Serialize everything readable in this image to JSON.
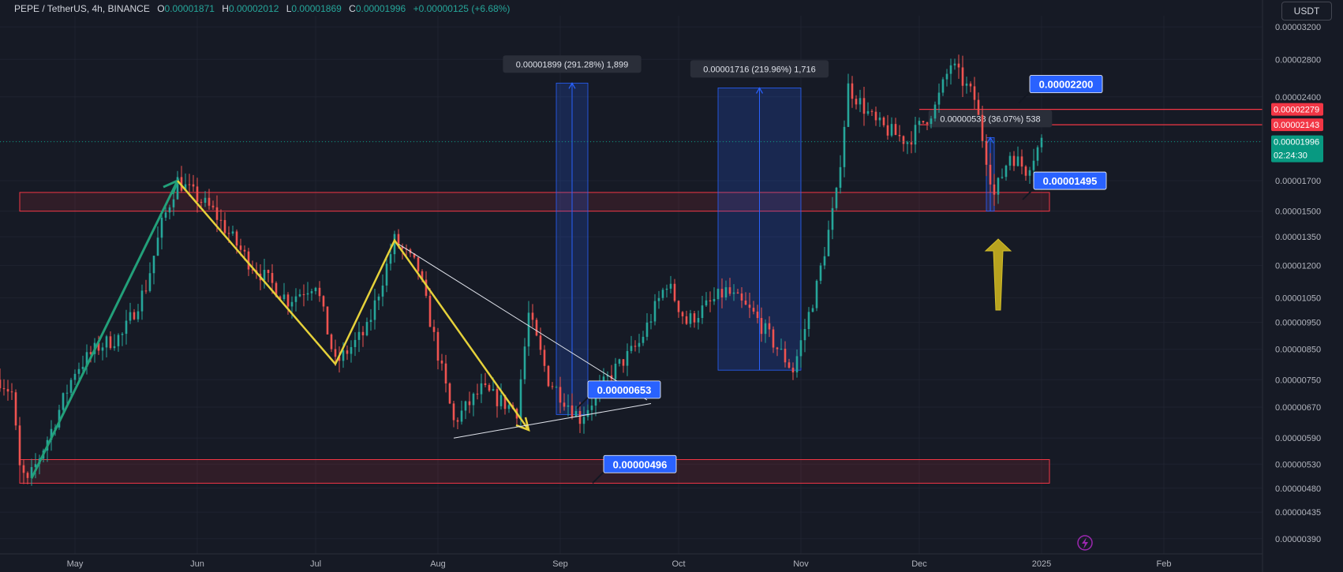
{
  "header": {
    "symbol": "PEPE / TetherUS, 4h, BINANCE",
    "o_label": "O",
    "o_value": "0.00001871",
    "h_label": "H",
    "h_value": "0.00002012",
    "l_label": "L",
    "l_value": "0.00001869",
    "c_label": "C",
    "c_value": "0.00001996",
    "change": "+0.00000125 (+6.68%)"
  },
  "currency_button": "USDT",
  "colors": {
    "background": "#161a25",
    "up": "#26a69a",
    "down": "#ef5350",
    "zone": "#f23645",
    "trend_green": "#22a07a",
    "trend_yellow": "#e5d13a",
    "label_blue": "#2962ff",
    "measure_blue": "#2962ff"
  },
  "chart_data": {
    "type": "candlestick",
    "y_scale": "log",
    "y_ticks": [
      "0.00003200",
      "0.00002800",
      "0.00002400",
      "0.00002000",
      "0.00001700",
      "0.00001500",
      "0.00001350",
      "0.00001200",
      "0.00001050",
      "0.00000950",
      "0.00000850",
      "0.00000750",
      "0.00000670",
      "0.00000590",
      "0.00000530",
      "0.00000480",
      "0.00000435",
      "0.00000390"
    ],
    "x_ticks": [
      "May",
      "Jun",
      "Jul",
      "Aug",
      "Sep",
      "Oct",
      "Nov",
      "Dec",
      "2025",
      "Feb"
    ],
    "x_range": [
      "2024-04-12",
      "2025-02-26"
    ],
    "price_path": [
      [
        "2024-04-12",
        7.5e-06
      ],
      [
        "2024-04-15",
        7.1e-06
      ],
      [
        "2024-04-17",
        5.2e-06
      ],
      [
        "2024-04-19",
        4.9e-06
      ],
      [
        "2024-04-25",
        6.1e-06
      ],
      [
        "2024-05-01",
        7.8e-06
      ],
      [
        "2024-05-07",
        8.6e-06
      ],
      [
        "2024-05-13",
        9e-06
      ],
      [
        "2024-05-19",
        1.1e-05
      ],
      [
        "2024-05-23",
        1.42e-05
      ],
      [
        "2024-05-27",
        1.7e-05
      ],
      [
        "2024-06-05",
        1.5e-05
      ],
      [
        "2024-06-14",
        1.22e-05
      ],
      [
        "2024-06-24",
        1.04e-05
      ],
      [
        "2024-07-01",
        1.12e-05
      ],
      [
        "2024-07-06",
        8e-06
      ],
      [
        "2024-07-14",
        9.2e-06
      ],
      [
        "2024-07-21",
        1.33e-05
      ],
      [
        "2024-07-27",
        1.18e-05
      ],
      [
        "2024-08-05",
        6.3e-06
      ],
      [
        "2024-08-12",
        7.2e-06
      ],
      [
        "2024-08-21",
        6.6e-06
      ],
      [
        "2024-08-24",
        9.8e-06
      ],
      [
        "2024-08-29",
        7.5e-06
      ],
      [
        "2024-09-06",
        6.4e-06
      ],
      [
        "2024-09-14",
        7.7e-06
      ],
      [
        "2024-09-21",
        8.7e-06
      ],
      [
        "2024-09-28",
        1.12e-05
      ],
      [
        "2024-10-03",
        9.5e-06
      ],
      [
        "2024-10-13",
        1.08e-05
      ],
      [
        "2024-10-20",
        9.8e-06
      ],
      [
        "2024-10-30",
        7.8e-06
      ],
      [
        "2024-11-05",
        1.1e-05
      ],
      [
        "2024-11-10",
        1.6e-05
      ],
      [
        "2024-11-13",
        2.5e-05
      ],
      [
        "2024-11-20",
        2.15e-05
      ],
      [
        "2024-11-28",
        2e-05
      ],
      [
        "2024-12-05",
        2.3e-05
      ],
      [
        "2024-12-09",
        2.75e-05
      ],
      [
        "2024-12-15",
        2.38e-05
      ],
      [
        "2024-12-20",
        1.6e-05
      ],
      [
        "2024-12-24",
        1.9e-05
      ],
      [
        "2024-12-28",
        1.78e-05
      ],
      [
        "2025-01-01",
        2e-05
      ]
    ],
    "zones": [
      {
        "from": "2024-04-17",
        "to": "2025-01-03",
        "low": 1.5e-05,
        "high": 1.62e-05
      },
      {
        "from": "2024-04-17",
        "to": "2025-01-03",
        "low": 4.9e-06,
        "high": 5.4e-06
      }
    ],
    "levels": [
      {
        "value": 2.28e-05,
        "from": "2024-12-01",
        "to": "2025-02-26"
      },
      {
        "value": 2.14e-05,
        "from": "2024-12-01",
        "to": "2025-02-26"
      }
    ],
    "measurements": [
      {
        "label": "0.00001899 (291.28%) 1,899",
        "from": "2024-08-31",
        "to": "2024-09-08",
        "low": 6.5e-06,
        "high": 2.54e-05
      },
      {
        "label": "0.00001716 (219.96%) 1,716",
        "from": "2024-10-11",
        "to": "2024-11-01",
        "low": 7.8e-06,
        "high": 2.49e-05
      },
      {
        "label": "0.00000538 (36.07%) 538",
        "from": "2024-12-18",
        "to": "2024-12-20",
        "low": 1.5e-05,
        "high": 2.03e-05
      }
    ],
    "callouts": [
      {
        "label": "0.00002200",
        "date": "2024-12-29",
        "value": 2.53e-05
      },
      {
        "label": "0.00001495",
        "date": "2024-12-30",
        "value": 1.7e-05
      },
      {
        "label": "0.00000653",
        "date": "2024-09-08",
        "value": 7.2e-06
      },
      {
        "label": "0.00000496",
        "date": "2024-09-12",
        "value": 5.3e-06
      }
    ],
    "price_axis_tags": [
      {
        "value": 2.28e-05,
        "label": "0.00002279",
        "color": "#f23645"
      },
      {
        "value": 2.14e-05,
        "label": "0.00002143",
        "color": "#f23645"
      },
      {
        "value": 1.996e-05,
        "label": "0.00001996",
        "color": "#089981",
        "sub": "02:24:30"
      }
    ],
    "green_trend": [
      [
        "2024-04-20",
        5e-06
      ],
      [
        "2024-05-27",
        1.7e-05
      ]
    ],
    "yellow_trend": [
      [
        "2024-05-27",
        1.7e-05
      ],
      [
        "2024-07-06",
        8e-06
      ],
      [
        "2024-07-21",
        1.33e-05
      ],
      [
        "2024-08-24",
        6.1e-06
      ]
    ],
    "triangle_upper": [
      [
        "2024-07-22",
        1.31e-05
      ],
      [
        "2024-09-23",
        6.9e-06
      ]
    ],
    "triangle_lower": [
      [
        "2024-08-05",
        5.9e-06
      ],
      [
        "2024-09-24",
        6.8e-06
      ]
    ]
  }
}
